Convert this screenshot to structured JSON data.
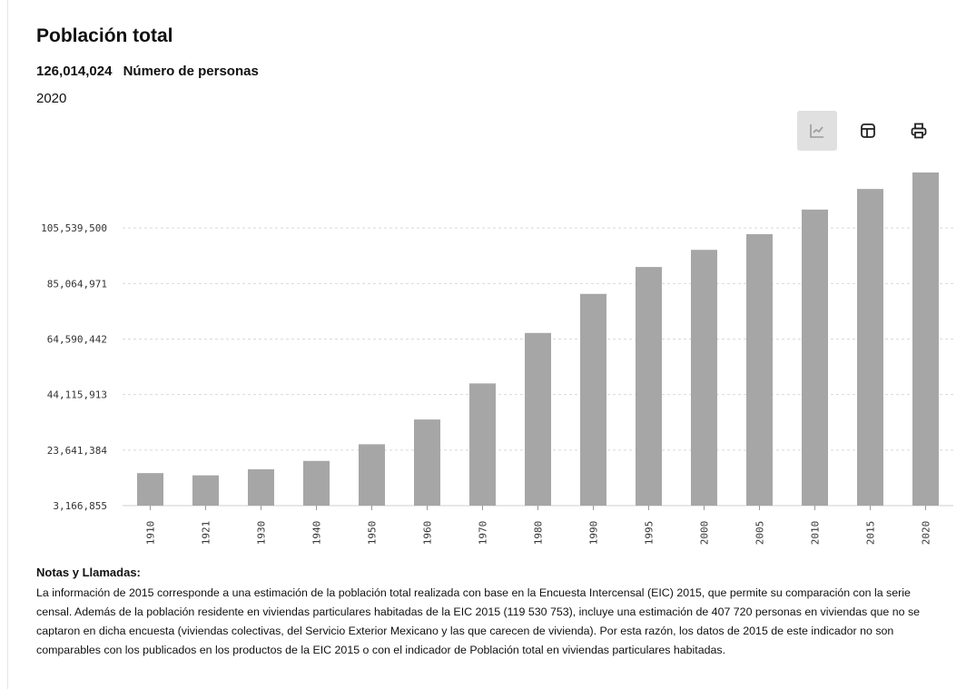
{
  "header": {
    "title": "Población total",
    "value": "126,014,024",
    "unit": "Número de personas",
    "year": "2020"
  },
  "toolbar": {
    "buttons": [
      {
        "icon": "line-chart-icon",
        "active": true
      },
      {
        "icon": "table-icon",
        "active": false
      },
      {
        "icon": "print-icon",
        "active": false
      }
    ]
  },
  "chart_data": {
    "type": "bar",
    "categories": [
      "1910",
      "1921",
      "1930",
      "1940",
      "1950",
      "1960",
      "1970",
      "1980",
      "1990",
      "1995",
      "2000",
      "2005",
      "2010",
      "2015",
      "2020"
    ],
    "values": [
      15160369,
      14334780,
      16552722,
      19653552,
      25791017,
      34923129,
      48225238,
      66846833,
      81249645,
      91158290,
      97483412,
      103263388,
      112336538,
      119938473,
      126014024
    ],
    "yticks": [
      3166855,
      23641384,
      44115913,
      64590442,
      85064971,
      105539500
    ],
    "ytick_labels": [
      "3,166,855",
      "23,641,384",
      "44,115,913",
      "64,590,442",
      "85,064,971",
      "105,539,500"
    ],
    "ylim": [
      3166855,
      126014024
    ],
    "grid": true,
    "bar_color": "#a6a6a6",
    "grid_color": "#d9d9d9"
  },
  "notes": {
    "title": "Notas y Llamadas:",
    "text": "La información de 2015 corresponde a una estimación de la población total realizada con base en la Encuesta Intercensal (EIC) 2015, que permite su comparación con la serie censal. Además de la población residente en viviendas particulares habitadas de la EIC 2015 (119 530 753), incluye una estimación de 407 720 personas en viviendas que no se captaron en dicha encuesta (viviendas colectivas, del Servicio Exterior Mexicano y las que carecen de vivienda). Por esta razón, los datos de 2015 de este indicador no son comparables con los publicados en los productos de la EIC 2015 o con el indicador de Población total en viviendas particulares habitadas."
  }
}
